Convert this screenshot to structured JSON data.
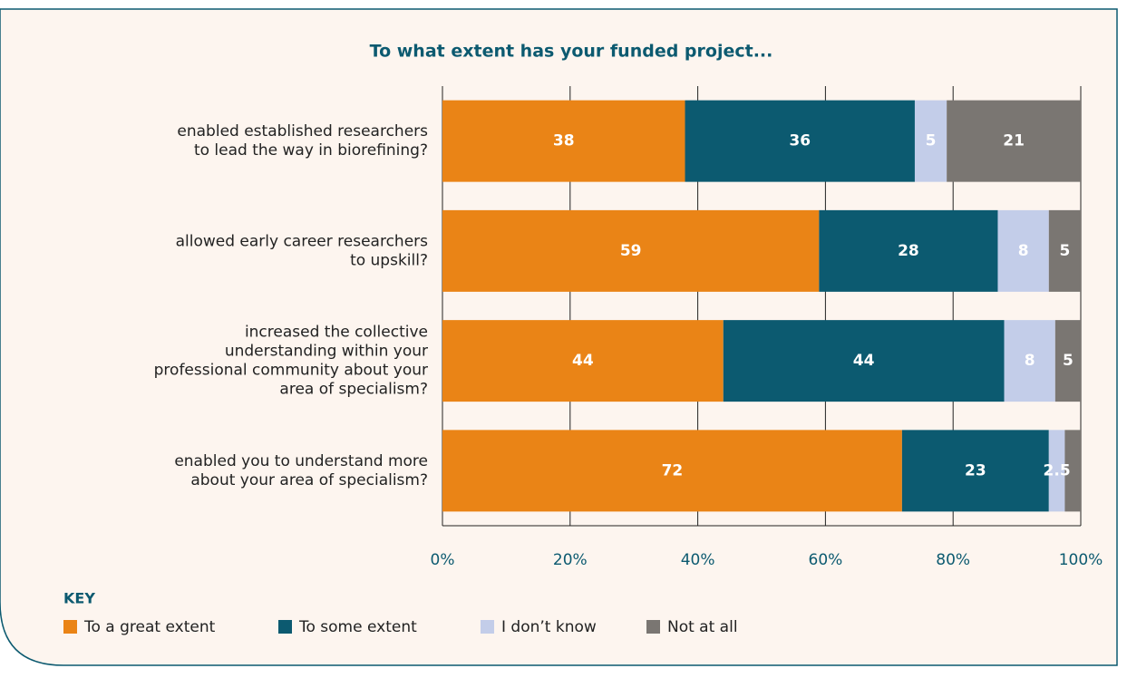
{
  "chart_data": {
    "type": "stacked_bar_horizontal",
    "title": "To what extent has your funded project...",
    "categories": [
      [
        "enabled established researchers",
        "to lead the way in biorefining?"
      ],
      [
        "allowed early career researchers",
        "to upskill?"
      ],
      [
        "increased the collective",
        "understanding within your",
        "professional community about your",
        "area of specialism?"
      ],
      [
        "enabled you to understand more",
        "about your area of specialism?"
      ]
    ],
    "series": [
      {
        "name": "To a great extent",
        "color": "#ea8416",
        "values": [
          38,
          59,
          44,
          72
        ]
      },
      {
        "name": "To some extent",
        "color": "#0c5a70",
        "values": [
          36,
          28,
          44,
          23
        ]
      },
      {
        "name": "I don’t know",
        "color": "#c3cde9",
        "values": [
          5,
          8,
          8,
          2.5
        ]
      },
      {
        "name": "Not at all",
        "color": "#7a7672",
        "values": [
          21,
          5,
          5,
          2.5
        ],
        "value_labels": [
          "21",
          "5",
          "5",
          null
        ]
      }
    ],
    "xlim": [
      0,
      100
    ],
    "xticks": [
      {
        "value": 0,
        "label": "0%"
      },
      {
        "value": 20,
        "label": "20%"
      },
      {
        "value": 40,
        "label": "40%"
      },
      {
        "value": 60,
        "label": "60%"
      },
      {
        "value": 80,
        "label": "80%"
      },
      {
        "value": 100,
        "label": "100%"
      }
    ],
    "grid": true,
    "legend_title": "KEY",
    "legend": "bottom-left"
  }
}
